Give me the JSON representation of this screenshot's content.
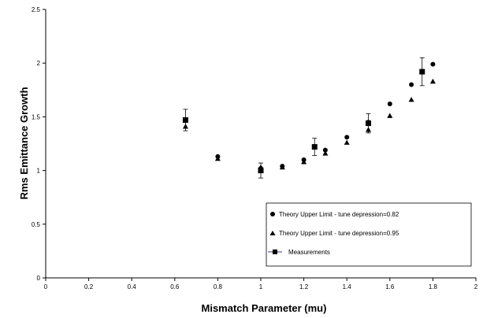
{
  "chart_data": {
    "type": "scatter",
    "title": "",
    "xlabel": "Mismatch Parameter (mu)",
    "ylabel": "Rms Emittance Growth",
    "xlim": [
      0,
      2
    ],
    "ylim": [
      0,
      2.5
    ],
    "x_ticks": [
      "0",
      "0.2",
      "0.4",
      "0.6",
      "0.8",
      "1",
      "1.2",
      "1.4",
      "1.6",
      "1.8",
      "2"
    ],
    "y_ticks": [
      "0",
      "0.5",
      "1",
      "1.5",
      "2",
      "2.5"
    ],
    "grid": false,
    "legend_position": "bottom-right",
    "series": [
      {
        "name": "Theory Upper Limit - tune depression=0.82",
        "marker": "circle",
        "color": "#000000",
        "points": [
          {
            "x": 0.65,
            "y": 1.47
          },
          {
            "x": 0.8,
            "y": 1.13
          },
          {
            "x": 1.0,
            "y": 1.02
          },
          {
            "x": 1.1,
            "y": 1.04
          },
          {
            "x": 1.2,
            "y": 1.1
          },
          {
            "x": 1.3,
            "y": 1.19
          },
          {
            "x": 1.4,
            "y": 1.31
          },
          {
            "x": 1.5,
            "y": 1.45
          },
          {
            "x": 1.6,
            "y": 1.62
          },
          {
            "x": 1.7,
            "y": 1.8
          },
          {
            "x": 1.8,
            "y": 1.99
          }
        ]
      },
      {
        "name": "Theory Upper Limit - tune depression=0.95",
        "marker": "triangle",
        "color": "#000000",
        "points": [
          {
            "x": 0.65,
            "y": 1.41
          },
          {
            "x": 0.8,
            "y": 1.11
          },
          {
            "x": 1.0,
            "y": 1.03
          },
          {
            "x": 1.1,
            "y": 1.03
          },
          {
            "x": 1.2,
            "y": 1.08
          },
          {
            "x": 1.3,
            "y": 1.16
          },
          {
            "x": 1.4,
            "y": 1.26
          },
          {
            "x": 1.5,
            "y": 1.38
          },
          {
            "x": 1.6,
            "y": 1.51
          },
          {
            "x": 1.7,
            "y": 1.66
          },
          {
            "x": 1.8,
            "y": 1.83
          }
        ]
      },
      {
        "name": "Measurements",
        "marker": "square",
        "color": "#000000",
        "line_color": "#3a3a8a",
        "points": [
          {
            "x": 0.65,
            "y": 1.47,
            "err": 0.1
          },
          {
            "x": 1.0,
            "y": 1.0,
            "err": 0.07
          },
          {
            "x": 1.25,
            "y": 1.22,
            "err": 0.08
          },
          {
            "x": 1.5,
            "y": 1.44,
            "err": 0.09
          },
          {
            "x": 1.75,
            "y": 1.92,
            "err": 0.13
          }
        ]
      }
    ]
  }
}
